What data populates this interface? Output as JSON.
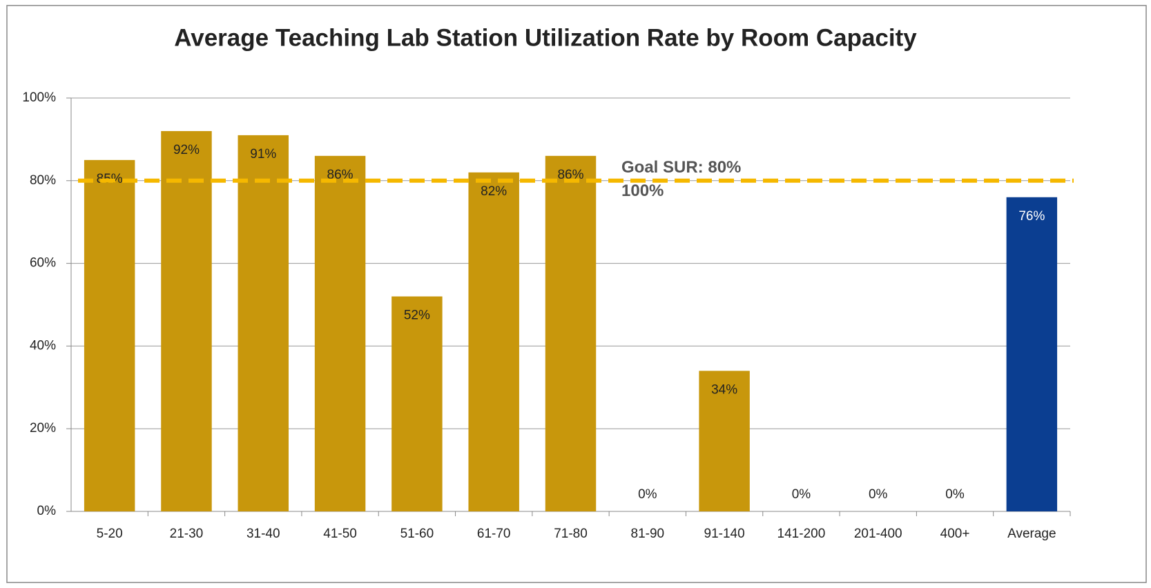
{
  "chart_data": {
    "type": "bar",
    "title": "Average Teaching Lab Station Utilization Rate by Room Capacity",
    "categories": [
      "5-20",
      "21-30",
      "31-40",
      "41-50",
      "51-60",
      "61-70",
      "71-80",
      "81-90",
      "91-140",
      "141-200",
      "201-400",
      "400+",
      "Average"
    ],
    "values": [
      85,
      92,
      91,
      86,
      52,
      82,
      86,
      0,
      34,
      0,
      0,
      0,
      76
    ],
    "value_labels": [
      "85%",
      "92%",
      "91%",
      "86%",
      "52%",
      "82%",
      "86%",
      "0%",
      "34%",
      "0%",
      "0%",
      "0%",
      "76%"
    ],
    "colors": [
      "#c8970c",
      "#c8970c",
      "#c8970c",
      "#c8970c",
      "#c8970c",
      "#c8970c",
      "#c8970c",
      "#c8970c",
      "#c8970c",
      "#c8970c",
      "#c8970c",
      "#c8970c",
      "#0b3e91"
    ],
    "ylim": [
      0,
      100
    ],
    "yticks": [
      {
        "value": 0,
        "label": "0%"
      },
      {
        "value": 20,
        "label": "20%"
      },
      {
        "value": 40,
        "label": "40%"
      },
      {
        "value": 60,
        "label": "60%"
      },
      {
        "value": 80,
        "label": "80%"
      },
      {
        "value": 100,
        "label": "100%"
      }
    ],
    "grid": true,
    "goal": {
      "value": 80,
      "color": "#f5b800",
      "labels": [
        "Goal SUR: 80%",
        "100%"
      ]
    }
  }
}
